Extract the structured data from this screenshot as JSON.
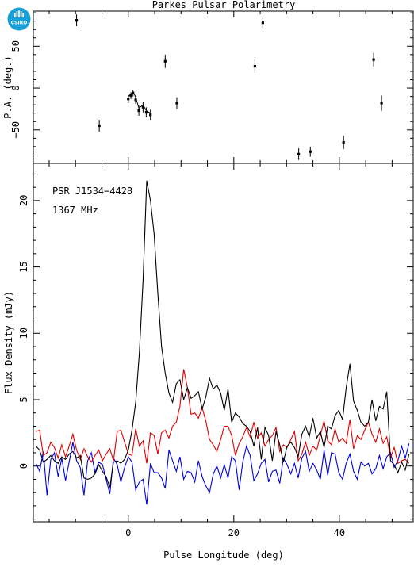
{
  "chart_data": [
    {
      "type": "scatter",
      "title": "Parkes Pulsar Polarimetry",
      "xlabel": "",
      "ylabel": "P.A. (deg.)",
      "xlim": [
        -18,
        54
      ],
      "ylim": [
        -90,
        92
      ],
      "yticks": [
        -50,
        0,
        50
      ],
      "grid": false,
      "series": [
        {
          "points": [
            {
              "x": -9.8,
              "y": 81,
              "err": 7
            },
            {
              "x": -5.5,
              "y": -45,
              "err": 7
            },
            {
              "x": 0.0,
              "y": -13,
              "err": 5
            },
            {
              "x": 0.5,
              "y": -9,
              "err": 4
            },
            {
              "x": 0.9,
              "y": -6,
              "err": 4
            },
            {
              "x": 1.4,
              "y": -14,
              "err": 5
            },
            {
              "x": 2.0,
              "y": -27,
              "err": 6
            },
            {
              "x": 2.8,
              "y": -23,
              "err": 6
            },
            {
              "x": 3.4,
              "y": -29,
              "err": 6
            },
            {
              "x": 4.2,
              "y": -32,
              "err": 6
            },
            {
              "x": 7.0,
              "y": 32,
              "err": 8
            },
            {
              "x": 9.2,
              "y": -18,
              "err": 7
            },
            {
              "x": 24.0,
              "y": 26,
              "err": 8
            },
            {
              "x": 25.5,
              "y": 78,
              "err": 6
            },
            {
              "x": 32.3,
              "y": -79,
              "err": 7
            },
            {
              "x": 34.5,
              "y": -76,
              "err": 6
            },
            {
              "x": 40.8,
              "y": -65,
              "err": 8
            },
            {
              "x": 46.5,
              "y": 34,
              "err": 8
            },
            {
              "x": 48.0,
              "y": -18,
              "err": 9
            }
          ],
          "connected_points": [
            {
              "x": 0.0,
              "y": -10
            },
            {
              "x": 0.5,
              "y": -7
            },
            {
              "x": 0.9,
              "y": -4
            },
            {
              "x": 1.4,
              "y": -11
            },
            {
              "x": 2.0,
              "y": -24
            },
            {
              "x": 2.8,
              "y": -20
            },
            {
              "x": 3.4,
              "y": -27
            },
            {
              "x": 4.2,
              "y": -30
            }
          ]
        }
      ]
    },
    {
      "type": "line",
      "title": "",
      "xlabel": "Pulse Longitude (deg)",
      "ylabel": "Flux Density (mJy)",
      "xlim": [
        -18,
        54
      ],
      "ylim": [
        -4.2,
        22.8
      ],
      "xticks": [
        0,
        20,
        40
      ],
      "yticks": [
        0,
        5,
        10,
        15,
        20
      ],
      "grid": false,
      "annotations": [
        "PSR J1534−4428",
        "1367 MHz"
      ],
      "x": {
        "start": -17.5,
        "step": 0.7,
        "count": 102
      },
      "series": [
        {
          "color": "#000000",
          "values": [
            1.5,
            1.2,
            0.3,
            0.5,
            0.8,
            0.4,
            0.2,
            0.7,
            0.5,
            0.9,
            1.1,
            0.6,
            0.8,
            -0.9,
            -1.0,
            -0.9,
            -0.6,
            0.1,
            -0.4,
            -0.8,
            -1.6,
            0.3,
            0.4,
            0.2,
            0.5,
            1.2,
            2.7,
            4.8,
            8.5,
            14.0,
            21.5,
            20.0,
            17.5,
            13.0,
            9.0,
            7.0,
            5.5,
            4.8,
            6.2,
            6.5,
            5.0,
            5.9,
            5.1,
            5.3,
            5.6,
            4.3,
            5.2,
            6.6,
            5.8,
            6.1,
            5.5,
            4.2,
            5.8,
            3.3,
            4.0,
            3.7,
            3.2,
            3.0,
            2.6,
            1.5,
            2.9,
            0.5,
            2.9,
            2.3,
            0.4,
            2.6,
            1.6,
            0.3,
            1.5,
            1.8,
            1.4,
            0.7,
            2.4,
            3.0,
            2.2,
            3.6,
            2.1,
            2.6,
            1.4,
            3.0,
            2.8,
            3.8,
            4.2,
            3.5,
            5.9,
            7.7,
            4.9,
            4.2,
            3.3,
            3.0,
            3.3,
            5.0,
            3.4,
            4.5,
            4.3,
            5.6,
            0.4,
            0.1,
            -0.5,
            0.3,
            -0.3,
            0.9
          ]
        },
        {
          "color": "#e00000",
          "values": [
            2.6,
            2.7,
            0.8,
            1.0,
            1.8,
            1.4,
            0.6,
            1.6,
            0.7,
            1.5,
            2.4,
            1.2,
            0.5,
            1.3,
            0.7,
            0.3,
            0.8,
            1.2,
            0.4,
            0.9,
            1.3,
            0.4,
            2.6,
            2.7,
            1.8,
            0.9,
            0.8,
            2.8,
            1.5,
            1.9,
            0.2,
            2.5,
            2.3,
            0.9,
            2.5,
            2.7,
            2.1,
            3.0,
            3.3,
            4.5,
            7.3,
            5.9,
            3.9,
            4.0,
            3.6,
            4.4,
            3.4,
            2.0,
            1.6,
            1.1,
            2.0,
            3.0,
            3.0,
            2.3,
            0.8,
            1.7,
            2.2,
            2.9,
            2.2,
            3.3,
            2.1,
            2.5,
            1.5,
            2.0,
            2.3,
            2.9,
            1.1,
            1.6,
            1.4,
            2.0,
            2.6,
            0.4,
            0.9,
            1.8,
            0.8,
            1.5,
            1.2,
            2.3,
            3.4,
            1.9,
            1.6,
            2.8,
            1.8,
            2.1,
            1.7,
            3.5,
            1.3,
            2.3,
            2.0,
            2.7,
            3.3,
            2.4,
            1.8,
            2.8,
            1.7,
            2.2,
            0.6,
            1.4,
            0.2,
            0.4,
            0.5,
            0.2
          ]
        },
        {
          "color": "#0000e0",
          "values": [
            0.2,
            -0.4,
            1.1,
            -2.2,
            0.5,
            1.0,
            -0.8,
            0.6,
            -1.1,
            0.3,
            1.8,
            0.4,
            -0.1,
            -2.2,
            0.4,
            1.0,
            -0.5,
            0.3,
            0.1,
            -1.0,
            -2.1,
            0.6,
            0.1,
            -1.2,
            -0.1,
            0.7,
            0.3,
            -1.8,
            -1.2,
            -1.0,
            -2.9,
            0.2,
            -0.5,
            -0.5,
            -0.9,
            -1.7,
            1.2,
            0.4,
            -0.4,
            0.7,
            -1.0,
            -0.4,
            -0.5,
            -1.2,
            0.4,
            -0.8,
            -1.5,
            -2.0,
            -0.6,
            0.0,
            -0.9,
            0.1,
            -0.9,
            0.7,
            0.4,
            -1.8,
            0.3,
            1.5,
            0.8,
            -1.1,
            -0.6,
            0.2,
            0.5,
            -1.2,
            -0.4,
            -0.3,
            -1.3,
            0.6,
            0.1,
            -0.6,
            0.2,
            -0.9,
            0.6,
            1.1,
            -0.4,
            0.2,
            -0.3,
            -1.0,
            1.2,
            -0.7,
            1.0,
            0.9,
            -0.5,
            -1.0,
            0.2,
            0.9,
            -0.4,
            -1.0,
            0.3,
            0.0,
            0.2,
            -0.6,
            -0.2,
            0.8,
            -0.2,
            0.7,
            1.0,
            -0.1,
            0.4,
            1.5,
            0.6,
            1.7
          ]
        }
      ]
    }
  ],
  "logo": {
    "text": "CSIRO",
    "color": "#1aa0d8"
  }
}
